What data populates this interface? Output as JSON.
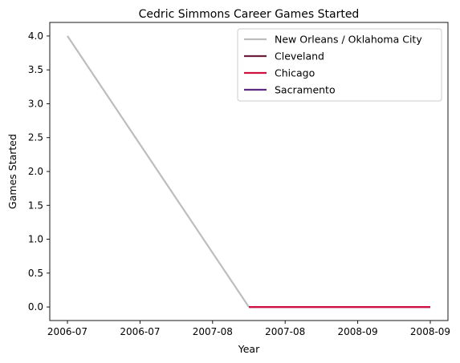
{
  "chart_data": {
    "type": "line",
    "title": "Cedric Simmons Career Games Started",
    "xlabel": "Year",
    "ylabel": "Games Started",
    "x_ticks": [
      "2006-07",
      "2006-07",
      "2007-08",
      "2007-08",
      "2008-09",
      "2008-09"
    ],
    "y_ticks": [
      "0.0",
      "0.5",
      "1.0",
      "1.5",
      "2.0",
      "2.5",
      "3.0",
      "3.5",
      "4.0"
    ],
    "ylim": [
      -0.2,
      4.2
    ],
    "grid": false,
    "legend_position": "top-right",
    "series": [
      {
        "name": "New Orleans / Oklahoma City",
        "color": "#bdbdbd",
        "points": [
          {
            "x": 0,
            "y": 4
          },
          {
            "x": 1,
            "y": 0
          }
        ]
      },
      {
        "name": "Cleveland",
        "color": "#6b1f3d",
        "points": [
          {
            "x": 1,
            "y": 0
          },
          {
            "x": 2,
            "y": 0
          }
        ]
      },
      {
        "name": "Chicago",
        "color": "#ce1141",
        "points": [
          {
            "x": 1,
            "y": 0
          },
          {
            "x": 2,
            "y": 0
          }
        ]
      },
      {
        "name": "Sacramento",
        "color": "#5a2d81",
        "points": []
      }
    ]
  }
}
